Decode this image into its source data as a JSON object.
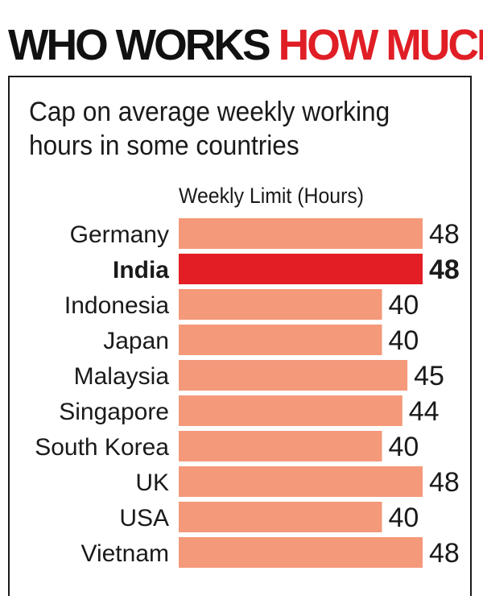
{
  "headline": {
    "part1": "WHO WORKS",
    "part2": "HOW MUCH"
  },
  "colors": {
    "bar": "#f4997a",
    "highlight_bar": "#e31e24",
    "headline_accent": "#e01e25",
    "text": "#1a1a1a"
  },
  "chart_data": {
    "type": "bar",
    "orientation": "horizontal",
    "title": "Cap on average weekly working hours in some countries",
    "xlabel": "Weekly Limit (Hours)",
    "categories": [
      "Germany",
      "India",
      "Indonesia",
      "Japan",
      "Malaysia",
      "Singapore",
      "South Korea",
      "UK",
      "USA",
      "Vietnam"
    ],
    "values": [
      48,
      48,
      40,
      40,
      45,
      44,
      40,
      48,
      40,
      48
    ],
    "highlight": "India",
    "data_labels": true,
    "grid": false
  }
}
